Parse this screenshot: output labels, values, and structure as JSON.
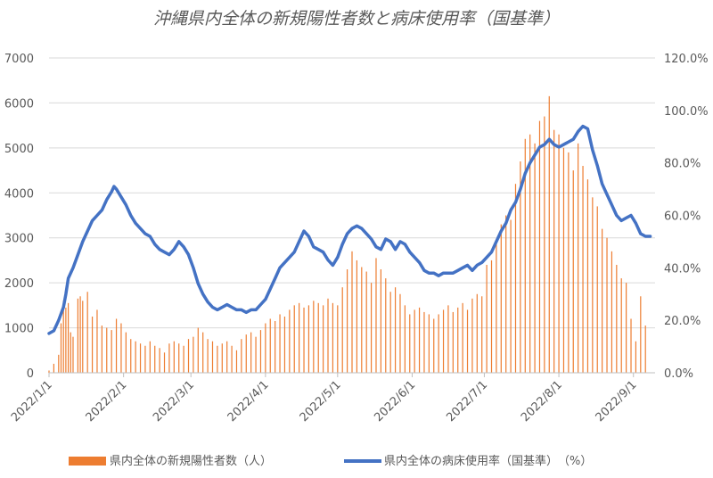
{
  "chart_data": {
    "type": "bar",
    "title": "沖縄県内全体の新規陽性者数と病床使用率（国基準）",
    "x_start": "2022-01-01",
    "x_end": "2022-09-10",
    "x_tick_dates": [
      "2022-01-01",
      "2022-02-01",
      "2022-03-01",
      "2022-04-01",
      "2022-05-01",
      "2022-06-01",
      "2022-07-01",
      "2022-08-01",
      "2022-09-01"
    ],
    "x_tick_labels": [
      "2022/1/1",
      "2022/2/1",
      "2022/3/1",
      "2022/4/1",
      "2022/5/1",
      "2022/6/1",
      "2022/7/1",
      "2022/8/1",
      "2022/9/1"
    ],
    "y_left_ticks": [
      "0",
      "1000",
      "2000",
      "3000",
      "4000",
      "5000",
      "6000",
      "7000"
    ],
    "y_right_ticks": [
      "0.0%",
      "20.0%",
      "40.0%",
      "60.0%",
      "80.0%",
      "100.0%",
      "120.0%"
    ],
    "ylim_left": [
      0,
      7000
    ],
    "ylim_right": [
      0,
      120
    ],
    "grid": "horizontal",
    "legend_position": "bottom",
    "series": [
      {
        "name": "県内全体の新規陽性者数（人）",
        "type": "bar",
        "axis": "left",
        "color": "#ED7D31",
        "points": [
          [
            "2022-01-01",
            50
          ],
          [
            "2022-01-03",
            200
          ],
          [
            "2022-01-05",
            400
          ],
          [
            "2022-01-06",
            1100
          ],
          [
            "2022-01-07",
            1600
          ],
          [
            "2022-01-08",
            1450
          ],
          [
            "2022-01-09",
            1550
          ],
          [
            "2022-01-10",
            900
          ],
          [
            "2022-01-11",
            800
          ],
          [
            "2022-01-13",
            1650
          ],
          [
            "2022-01-14",
            1700
          ],
          [
            "2022-01-15",
            1600
          ],
          [
            "2022-01-17",
            1800
          ],
          [
            "2022-01-19",
            1250
          ],
          [
            "2022-01-21",
            1400
          ],
          [
            "2022-01-23",
            1050
          ],
          [
            "2022-01-25",
            1000
          ],
          [
            "2022-01-27",
            950
          ],
          [
            "2022-01-29",
            1200
          ],
          [
            "2022-01-31",
            1100
          ],
          [
            "2022-02-02",
            900
          ],
          [
            "2022-02-04",
            750
          ],
          [
            "2022-02-06",
            700
          ],
          [
            "2022-02-08",
            650
          ],
          [
            "2022-02-10",
            600
          ],
          [
            "2022-02-12",
            700
          ],
          [
            "2022-02-14",
            600
          ],
          [
            "2022-02-16",
            550
          ],
          [
            "2022-02-18",
            450
          ],
          [
            "2022-02-20",
            650
          ],
          [
            "2022-02-22",
            700
          ],
          [
            "2022-02-24",
            650
          ],
          [
            "2022-02-26",
            600
          ],
          [
            "2022-02-28",
            750
          ],
          [
            "2022-03-02",
            800
          ],
          [
            "2022-03-04",
            1000
          ],
          [
            "2022-03-06",
            900
          ],
          [
            "2022-03-08",
            750
          ],
          [
            "2022-03-10",
            700
          ],
          [
            "2022-03-12",
            600
          ],
          [
            "2022-03-14",
            650
          ],
          [
            "2022-03-16",
            700
          ],
          [
            "2022-03-18",
            600
          ],
          [
            "2022-03-20",
            500
          ],
          [
            "2022-03-22",
            750
          ],
          [
            "2022-03-24",
            850
          ],
          [
            "2022-03-26",
            900
          ],
          [
            "2022-03-28",
            800
          ],
          [
            "2022-03-30",
            950
          ],
          [
            "2022-04-01",
            1100
          ],
          [
            "2022-04-03",
            1200
          ],
          [
            "2022-04-05",
            1150
          ],
          [
            "2022-04-07",
            1300
          ],
          [
            "2022-04-09",
            1250
          ],
          [
            "2022-04-11",
            1400
          ],
          [
            "2022-04-13",
            1500
          ],
          [
            "2022-04-15",
            1550
          ],
          [
            "2022-04-17",
            1450
          ],
          [
            "2022-04-19",
            1500
          ],
          [
            "2022-04-21",
            1600
          ],
          [
            "2022-04-23",
            1550
          ],
          [
            "2022-04-25",
            1500
          ],
          [
            "2022-04-27",
            1650
          ],
          [
            "2022-04-29",
            1550
          ],
          [
            "2022-05-01",
            1500
          ],
          [
            "2022-05-03",
            1900
          ],
          [
            "2022-05-05",
            2300
          ],
          [
            "2022-05-07",
            2700
          ],
          [
            "2022-05-09",
            2500
          ],
          [
            "2022-05-11",
            2350
          ],
          [
            "2022-05-13",
            2250
          ],
          [
            "2022-05-15",
            2000
          ],
          [
            "2022-05-17",
            2550
          ],
          [
            "2022-05-19",
            2300
          ],
          [
            "2022-05-21",
            2100
          ],
          [
            "2022-05-23",
            1800
          ],
          [
            "2022-05-25",
            1900
          ],
          [
            "2022-05-27",
            1750
          ],
          [
            "2022-05-29",
            1500
          ],
          [
            "2022-05-31",
            1300
          ],
          [
            "2022-06-02",
            1400
          ],
          [
            "2022-06-04",
            1450
          ],
          [
            "2022-06-06",
            1350
          ],
          [
            "2022-06-08",
            1300
          ],
          [
            "2022-06-10",
            1200
          ],
          [
            "2022-06-12",
            1300
          ],
          [
            "2022-06-14",
            1400
          ],
          [
            "2022-06-16",
            1500
          ],
          [
            "2022-06-18",
            1350
          ],
          [
            "2022-06-20",
            1450
          ],
          [
            "2022-06-22",
            1550
          ],
          [
            "2022-06-24",
            1400
          ],
          [
            "2022-06-26",
            1650
          ],
          [
            "2022-06-28",
            1750
          ],
          [
            "2022-06-30",
            1700
          ],
          [
            "2022-07-02",
            2400
          ],
          [
            "2022-07-04",
            2500
          ],
          [
            "2022-07-06",
            2900
          ],
          [
            "2022-07-08",
            3300
          ],
          [
            "2022-07-10",
            3500
          ],
          [
            "2022-07-12",
            3400
          ],
          [
            "2022-07-14",
            4200
          ],
          [
            "2022-07-16",
            4700
          ],
          [
            "2022-07-18",
            5200
          ],
          [
            "2022-07-20",
            5300
          ],
          [
            "2022-07-22",
            5100
          ],
          [
            "2022-07-24",
            5600
          ],
          [
            "2022-07-26",
            5700
          ],
          [
            "2022-07-28",
            6150
          ],
          [
            "2022-07-30",
            5400
          ],
          [
            "2022-08-01",
            5300
          ],
          [
            "2022-08-03",
            5000
          ],
          [
            "2022-08-05",
            4900
          ],
          [
            "2022-08-07",
            4500
          ],
          [
            "2022-08-09",
            5100
          ],
          [
            "2022-08-11",
            4600
          ],
          [
            "2022-08-13",
            4300
          ],
          [
            "2022-08-15",
            3900
          ],
          [
            "2022-08-17",
            3700
          ],
          [
            "2022-08-19",
            3200
          ],
          [
            "2022-08-21",
            3000
          ],
          [
            "2022-08-23",
            2700
          ],
          [
            "2022-08-25",
            2400
          ],
          [
            "2022-08-27",
            2100
          ],
          [
            "2022-08-29",
            2000
          ],
          [
            "2022-08-31",
            1200
          ],
          [
            "2022-09-02",
            700
          ],
          [
            "2022-09-04",
            1700
          ],
          [
            "2022-09-06",
            1050
          ]
        ]
      },
      {
        "name": "県内全体の病床使用率（国基準）　（%）",
        "type": "line",
        "axis": "right",
        "color": "#4472C4",
        "points": [
          [
            "2022-01-01",
            15
          ],
          [
            "2022-01-03",
            16
          ],
          [
            "2022-01-05",
            20
          ],
          [
            "2022-01-07",
            25
          ],
          [
            "2022-01-08",
            30
          ],
          [
            "2022-01-09",
            36
          ],
          [
            "2022-01-11",
            40
          ],
          [
            "2022-01-13",
            45
          ],
          [
            "2022-01-15",
            50
          ],
          [
            "2022-01-17",
            54
          ],
          [
            "2022-01-19",
            58
          ],
          [
            "2022-01-21",
            60
          ],
          [
            "2022-01-23",
            62
          ],
          [
            "2022-01-25",
            66
          ],
          [
            "2022-01-27",
            69
          ],
          [
            "2022-01-28",
            71
          ],
          [
            "2022-01-29",
            70
          ],
          [
            "2022-01-31",
            67
          ],
          [
            "2022-02-02",
            64
          ],
          [
            "2022-02-04",
            60
          ],
          [
            "2022-02-06",
            57
          ],
          [
            "2022-02-08",
            55
          ],
          [
            "2022-02-10",
            53
          ],
          [
            "2022-02-12",
            52
          ],
          [
            "2022-02-14",
            49
          ],
          [
            "2022-02-16",
            47
          ],
          [
            "2022-02-18",
            46
          ],
          [
            "2022-02-20",
            45
          ],
          [
            "2022-02-22",
            47
          ],
          [
            "2022-02-24",
            50
          ],
          [
            "2022-02-26",
            48
          ],
          [
            "2022-02-28",
            45
          ],
          [
            "2022-03-02",
            40
          ],
          [
            "2022-03-04",
            34
          ],
          [
            "2022-03-06",
            30
          ],
          [
            "2022-03-08",
            27
          ],
          [
            "2022-03-10",
            25
          ],
          [
            "2022-03-12",
            24
          ],
          [
            "2022-03-14",
            25
          ],
          [
            "2022-03-16",
            26
          ],
          [
            "2022-03-18",
            25
          ],
          [
            "2022-03-20",
            24
          ],
          [
            "2022-03-22",
            24
          ],
          [
            "2022-03-24",
            23
          ],
          [
            "2022-03-26",
            24
          ],
          [
            "2022-03-28",
            24
          ],
          [
            "2022-03-30",
            26
          ],
          [
            "2022-04-01",
            28
          ],
          [
            "2022-04-03",
            32
          ],
          [
            "2022-04-05",
            36
          ],
          [
            "2022-04-07",
            40
          ],
          [
            "2022-04-09",
            42
          ],
          [
            "2022-04-11",
            44
          ],
          [
            "2022-04-13",
            46
          ],
          [
            "2022-04-15",
            50
          ],
          [
            "2022-04-17",
            54
          ],
          [
            "2022-04-19",
            52
          ],
          [
            "2022-04-21",
            48
          ],
          [
            "2022-04-23",
            47
          ],
          [
            "2022-04-25",
            46
          ],
          [
            "2022-04-27",
            43
          ],
          [
            "2022-04-29",
            41
          ],
          [
            "2022-05-01",
            44
          ],
          [
            "2022-05-03",
            49
          ],
          [
            "2022-05-05",
            53
          ],
          [
            "2022-05-07",
            55
          ],
          [
            "2022-05-09",
            56
          ],
          [
            "2022-05-11",
            55
          ],
          [
            "2022-05-13",
            53
          ],
          [
            "2022-05-15",
            51
          ],
          [
            "2022-05-17",
            48
          ],
          [
            "2022-05-19",
            47
          ],
          [
            "2022-05-21",
            51
          ],
          [
            "2022-05-23",
            50
          ],
          [
            "2022-05-25",
            47
          ],
          [
            "2022-05-27",
            50
          ],
          [
            "2022-05-29",
            49
          ],
          [
            "2022-05-31",
            46
          ],
          [
            "2022-06-02",
            44
          ],
          [
            "2022-06-04",
            42
          ],
          [
            "2022-06-06",
            39
          ],
          [
            "2022-06-08",
            38
          ],
          [
            "2022-06-10",
            38
          ],
          [
            "2022-06-12",
            37
          ],
          [
            "2022-06-14",
            38
          ],
          [
            "2022-06-16",
            38
          ],
          [
            "2022-06-18",
            38
          ],
          [
            "2022-06-20",
            39
          ],
          [
            "2022-06-22",
            40
          ],
          [
            "2022-06-24",
            41
          ],
          [
            "2022-06-26",
            39
          ],
          [
            "2022-06-28",
            41
          ],
          [
            "2022-06-30",
            42
          ],
          [
            "2022-07-02",
            44
          ],
          [
            "2022-07-04",
            46
          ],
          [
            "2022-07-06",
            50
          ],
          [
            "2022-07-08",
            54
          ],
          [
            "2022-07-10",
            57
          ],
          [
            "2022-07-12",
            62
          ],
          [
            "2022-07-14",
            65
          ],
          [
            "2022-07-16",
            70
          ],
          [
            "2022-07-18",
            76
          ],
          [
            "2022-07-20",
            80
          ],
          [
            "2022-07-22",
            83
          ],
          [
            "2022-07-24",
            86
          ],
          [
            "2022-07-26",
            87
          ],
          [
            "2022-07-28",
            89
          ],
          [
            "2022-07-30",
            87
          ],
          [
            "2022-08-01",
            86
          ],
          [
            "2022-08-03",
            87
          ],
          [
            "2022-08-05",
            88
          ],
          [
            "2022-08-07",
            89
          ],
          [
            "2022-08-09",
            92
          ],
          [
            "2022-08-11",
            94
          ],
          [
            "2022-08-13",
            93
          ],
          [
            "2022-08-15",
            85
          ],
          [
            "2022-08-17",
            79
          ],
          [
            "2022-08-19",
            72
          ],
          [
            "2022-08-21",
            68
          ],
          [
            "2022-08-23",
            64
          ],
          [
            "2022-08-25",
            60
          ],
          [
            "2022-08-27",
            58
          ],
          [
            "2022-08-29",
            59
          ],
          [
            "2022-08-31",
            60
          ],
          [
            "2022-09-02",
            57
          ],
          [
            "2022-09-04",
            53
          ],
          [
            "2022-09-06",
            52
          ],
          [
            "2022-09-08",
            52
          ]
        ]
      }
    ]
  }
}
